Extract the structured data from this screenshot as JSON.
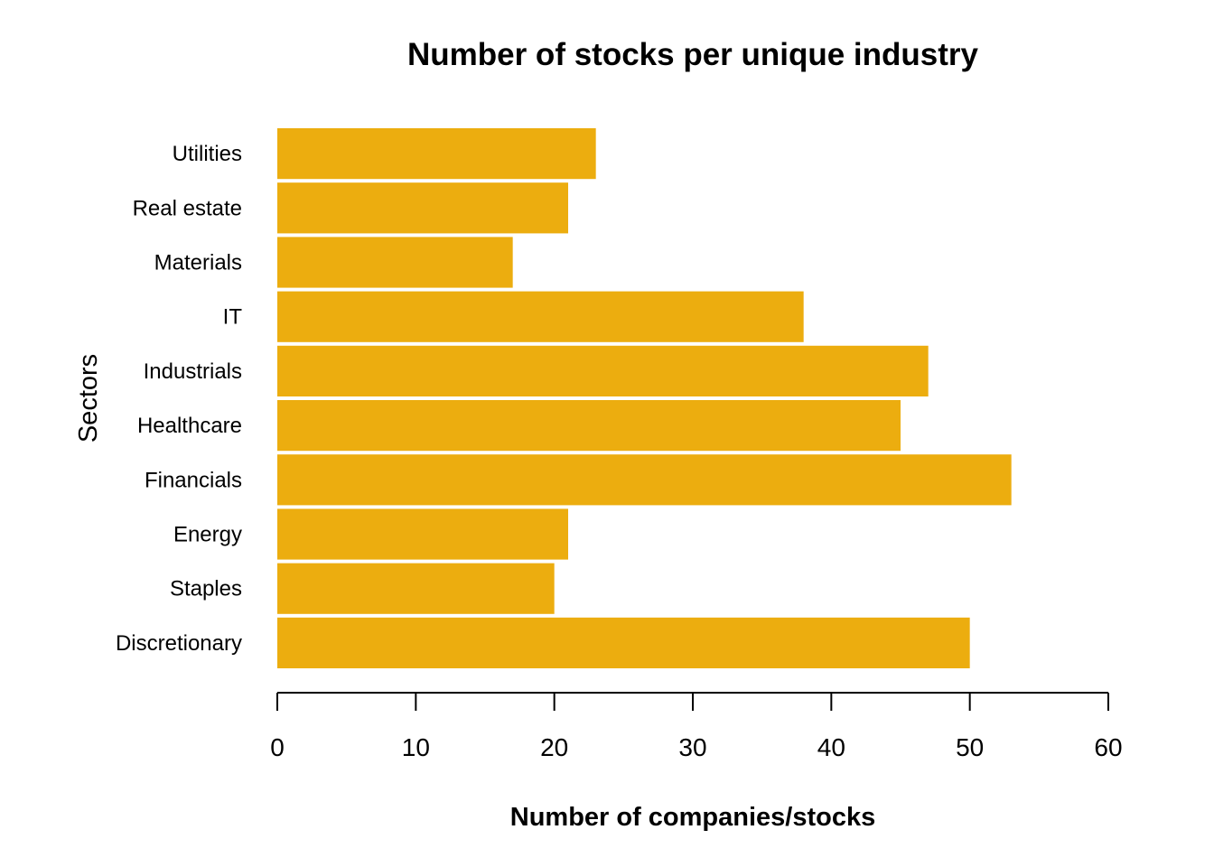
{
  "chart_data": {
    "type": "bar",
    "orientation": "horizontal",
    "title": "Number of stocks per unique industry",
    "xlabel": "Number of companies/stocks",
    "ylabel": "Sectors",
    "categories": [
      "Discretionary",
      "Staples",
      "Energy",
      "Financials",
      "Healthcare",
      "Industrials",
      "IT",
      "Materials",
      "Real estate",
      "Utilities"
    ],
    "values": [
      50,
      20,
      21,
      53,
      45,
      47,
      38,
      17,
      21,
      23
    ],
    "xlim": [
      0,
      60
    ],
    "xticks": [
      "0",
      "10",
      "20",
      "30",
      "40",
      "50",
      "60"
    ],
    "bar_color": "#ECAD0F",
    "grid": false,
    "legend": "none"
  }
}
